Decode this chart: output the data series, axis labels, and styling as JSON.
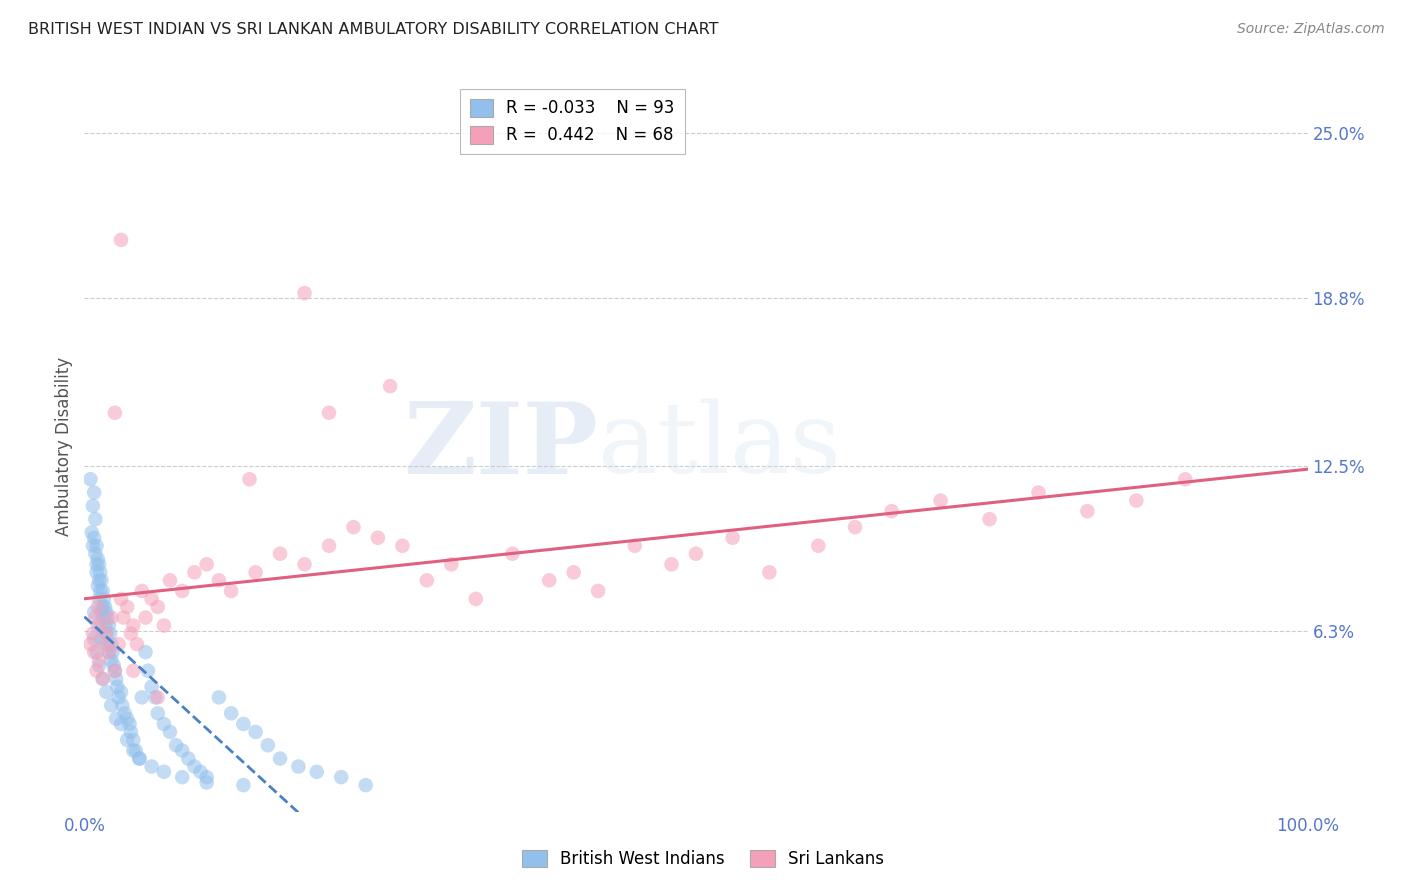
{
  "title": "BRITISH WEST INDIAN VS SRI LANKAN AMBULATORY DISABILITY CORRELATION CHART",
  "source": "Source: ZipAtlas.com",
  "ylabel": "Ambulatory Disability",
  "xlim": [
    0.0,
    1.0
  ],
  "ylim": [
    -0.005,
    0.27
  ],
  "x_ticks": [
    0.0,
    0.2,
    0.4,
    0.6,
    0.8,
    1.0
  ],
  "x_tick_labels": [
    "0.0%",
    "",
    "",
    "",
    "",
    "100.0%"
  ],
  "y_tick_labels_right": [
    "6.3%",
    "12.5%",
    "18.8%",
    "25.0%"
  ],
  "y_tick_values_right": [
    0.063,
    0.125,
    0.188,
    0.25
  ],
  "bwi_color": "#92c0ec",
  "bwi_line_color": "#4a80c4",
  "srilanka_color": "#f5a0b8",
  "srilanka_line_color": "#e06080",
  "R_bwi": -0.033,
  "N_bwi": 93,
  "R_srilanka": 0.442,
  "N_srilanka": 68,
  "watermark_zip": "ZIP",
  "watermark_atlas": "atlas",
  "background_color": "#ffffff",
  "grid_color": "#cccccc",
  "axis_color": "#5577cc",
  "bwi_scatter_x": [
    0.005,
    0.006,
    0.007,
    0.007,
    0.008,
    0.008,
    0.009,
    0.009,
    0.01,
    0.01,
    0.01,
    0.011,
    0.011,
    0.012,
    0.012,
    0.012,
    0.013,
    0.013,
    0.014,
    0.014,
    0.015,
    0.015,
    0.016,
    0.016,
    0.017,
    0.017,
    0.018,
    0.018,
    0.019,
    0.019,
    0.02,
    0.02,
    0.021,
    0.022,
    0.022,
    0.023,
    0.024,
    0.025,
    0.026,
    0.027,
    0.028,
    0.03,
    0.031,
    0.033,
    0.035,
    0.037,
    0.038,
    0.04,
    0.042,
    0.045,
    0.047,
    0.05,
    0.052,
    0.055,
    0.058,
    0.06,
    0.065,
    0.07,
    0.075,
    0.08,
    0.085,
    0.09,
    0.095,
    0.1,
    0.11,
    0.12,
    0.13,
    0.14,
    0.15,
    0.16,
    0.175,
    0.19,
    0.21,
    0.23,
    0.008,
    0.01,
    0.012,
    0.015,
    0.018,
    0.022,
    0.026,
    0.03,
    0.035,
    0.04,
    0.045,
    0.055,
    0.065,
    0.08,
    0.1,
    0.13,
    0.008,
    0.011,
    0.014
  ],
  "bwi_scatter_y": [
    0.12,
    0.1,
    0.095,
    0.11,
    0.115,
    0.098,
    0.105,
    0.092,
    0.088,
    0.095,
    0.085,
    0.09,
    0.08,
    0.088,
    0.082,
    0.075,
    0.085,
    0.078,
    0.082,
    0.07,
    0.078,
    0.072,
    0.075,
    0.068,
    0.072,
    0.065,
    0.07,
    0.062,
    0.068,
    0.058,
    0.065,
    0.055,
    0.062,
    0.058,
    0.052,
    0.055,
    0.05,
    0.048,
    0.045,
    0.042,
    0.038,
    0.04,
    0.035,
    0.032,
    0.03,
    0.028,
    0.025,
    0.022,
    0.018,
    0.015,
    0.038,
    0.055,
    0.048,
    0.042,
    0.038,
    0.032,
    0.028,
    0.025,
    0.02,
    0.018,
    0.015,
    0.012,
    0.01,
    0.008,
    0.038,
    0.032,
    0.028,
    0.025,
    0.02,
    0.015,
    0.012,
    0.01,
    0.008,
    0.005,
    0.06,
    0.055,
    0.05,
    0.045,
    0.04,
    0.035,
    0.03,
    0.028,
    0.022,
    0.018,
    0.015,
    0.012,
    0.01,
    0.008,
    0.006,
    0.005,
    0.07,
    0.065,
    0.06
  ],
  "sri_scatter_x": [
    0.005,
    0.007,
    0.008,
    0.009,
    0.01,
    0.011,
    0.012,
    0.013,
    0.015,
    0.017,
    0.018,
    0.02,
    0.022,
    0.025,
    0.028,
    0.03,
    0.032,
    0.035,
    0.038,
    0.04,
    0.043,
    0.047,
    0.05,
    0.055,
    0.06,
    0.065,
    0.07,
    0.08,
    0.09,
    0.1,
    0.11,
    0.12,
    0.14,
    0.16,
    0.18,
    0.2,
    0.22,
    0.24,
    0.26,
    0.28,
    0.3,
    0.32,
    0.35,
    0.38,
    0.4,
    0.42,
    0.45,
    0.48,
    0.5,
    0.53,
    0.56,
    0.6,
    0.63,
    0.66,
    0.7,
    0.74,
    0.78,
    0.82,
    0.86,
    0.9,
    0.2,
    0.25,
    0.18,
    0.135,
    0.03,
    0.025,
    0.04,
    0.06
  ],
  "sri_scatter_y": [
    0.058,
    0.062,
    0.055,
    0.068,
    0.048,
    0.072,
    0.052,
    0.065,
    0.045,
    0.058,
    0.062,
    0.055,
    0.068,
    0.048,
    0.058,
    0.075,
    0.068,
    0.072,
    0.062,
    0.065,
    0.058,
    0.078,
    0.068,
    0.075,
    0.072,
    0.065,
    0.082,
    0.078,
    0.085,
    0.088,
    0.082,
    0.078,
    0.085,
    0.092,
    0.088,
    0.095,
    0.102,
    0.098,
    0.095,
    0.082,
    0.088,
    0.075,
    0.092,
    0.082,
    0.085,
    0.078,
    0.095,
    0.088,
    0.092,
    0.098,
    0.085,
    0.095,
    0.102,
    0.108,
    0.112,
    0.105,
    0.115,
    0.108,
    0.112,
    0.12,
    0.145,
    0.155,
    0.19,
    0.12,
    0.21,
    0.145,
    0.048,
    0.038
  ]
}
